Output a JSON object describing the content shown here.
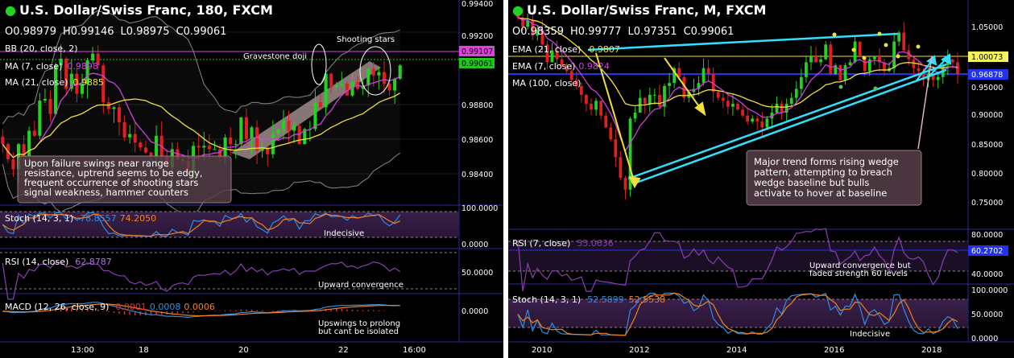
{
  "chart_data": [
    {
      "type": "candlestick",
      "title": "U.S. Dollar/Swiss Franc, 180, FXCM",
      "ohlc": {
        "o": "O0.98979",
        "h": "H0.99146",
        "l": "L0.98975",
        "c": "C0.99061"
      },
      "indicators": [
        {
          "label": "BB (20, close, 2)",
          "value": ""
        },
        {
          "label": "MA (7, close)",
          "value": "0.9898",
          "color": "#d040e0"
        },
        {
          "label": "MA (21, close)",
          "value": "0.9885",
          "color": "#f0e040"
        }
      ],
      "ylim": [
        0.9824,
        0.9944
      ],
      "y_ticks": [
        "0.99400",
        "0.99200",
        "0.98800",
        "0.98600",
        "0.98400"
      ],
      "x_ticks": [
        "13:00",
        "18",
        "20",
        "22",
        "16:00"
      ],
      "price_labels": [
        {
          "text": "0.99107",
          "bg": "#e040e0"
        },
        {
          "text": "0.99061",
          "bg": "#22c322"
        }
      ],
      "annotations": [
        "Gravestone doji",
        "Shooting stars"
      ],
      "note": [
        "Upon failure swings near range",
        "resistance, uptrend seems to be edgy,",
        "frequent occurrence of shooting stars",
        "signal weakness, hammer counters"
      ],
      "close_series": [
        0.9858,
        0.9849,
        0.9843,
        0.9858,
        0.9851,
        0.9866,
        0.9863,
        0.9884,
        0.9885,
        0.9876,
        0.9905,
        0.9909,
        0.9891,
        0.99,
        0.9888,
        0.9894,
        0.9908,
        0.9912,
        0.9905,
        0.9883,
        0.9879,
        0.988,
        0.9871,
        0.9862,
        0.9864,
        0.9859,
        0.9856,
        0.9853,
        0.9851,
        0.9863,
        0.9851,
        0.9844,
        0.9855,
        0.9849,
        0.9848,
        0.9841,
        0.9857,
        0.9856,
        0.9857,
        0.9855,
        0.9855,
        0.985,
        0.9862,
        0.9858,
        0.9858,
        0.9874,
        0.9861,
        0.9868,
        0.9854,
        0.9856,
        0.9852,
        0.9864,
        0.9867,
        0.9872,
        0.9866,
        0.9869,
        0.9858,
        0.9867,
        0.9867,
        0.9883,
        0.988,
        0.99,
        0.9892,
        0.9893,
        0.9894,
        0.9887,
        0.9895,
        0.9891,
        0.9893,
        0.9903,
        0.9899,
        0.9901,
        0.9894,
        0.989,
        0.9897,
        0.9905
      ],
      "panels": [
        {
          "label": "Stoch (14, 3, 1)",
          "v1": "78.8557",
          "v2": "74.2050",
          "ticks": [
            "100.0000",
            "0.0000"
          ],
          "annotation": "Indecisive"
        },
        {
          "label": "RSI (14, close)",
          "v1": "62.8787",
          "ticks": [
            "50.0000"
          ],
          "annotation": "Upward convergence"
        },
        {
          "label": "MACD (12, 26, close, 9)",
          "v1": "0.0001",
          "v2": "0.0008",
          "v3": "0.0006",
          "ticks": [
            "0.0000"
          ],
          "annotation": [
            "Upswings to prolong",
            "but cant be isolated"
          ]
        }
      ]
    },
    {
      "type": "candlestick",
      "title": "U.S. Dollar/Swiss Franc, M, FXCM",
      "ohlc": {
        "o": "O0.98359",
        "h": "H0.99777",
        "l": "L0.97351",
        "c": "C0.99061"
      },
      "indicators": [
        {
          "label": "EMA (21, close)",
          "value": "0.9807",
          "color": "#f0e040"
        },
        {
          "label": "EMA (7, close)",
          "value": "0.9824",
          "color": "#d040e0"
        },
        {
          "label": "MA (100, close)",
          "value": ""
        }
      ],
      "ylim": [
        0.715,
        1.095
      ],
      "y_ticks": [
        "1.05000",
        "0.95000",
        "0.90000",
        "0.85000",
        "0.80000",
        "0.75000"
      ],
      "x_ticks": [
        "2010",
        "2012",
        "2014",
        "2016",
        "2018"
      ],
      "price_labels": [
        {
          "text": "1.00073",
          "bg": "#f5f560"
        },
        {
          "text": "0.96878",
          "bg": "#2233ee"
        }
      ],
      "note": [
        "Major trend forms rising wedge",
        "pattern, attempting to breach",
        "wedge baseline but bulls",
        "activate to hover at baseline"
      ],
      "close_series": [
        1.065,
        1.05,
        1.06,
        1.035,
        1.045,
        1.02,
        0.99,
        1.01,
        0.995,
        0.985,
        0.975,
        0.96,
        0.95,
        0.935,
        0.92,
        0.91,
        0.925,
        0.9,
        0.88,
        0.86,
        0.83,
        0.795,
        0.775,
        0.895,
        0.905,
        0.93,
        0.92,
        0.935,
        0.935,
        0.915,
        0.95,
        0.955,
        0.98,
        0.965,
        0.93,
        0.94,
        0.945,
        0.955,
        0.98,
        0.97,
        0.94,
        0.93,
        0.925,
        0.915,
        0.92,
        0.91,
        0.9,
        0.89,
        0.895,
        0.89,
        0.88,
        0.895,
        0.905,
        0.92,
        0.905,
        0.92,
        0.93,
        0.945,
        0.965,
        0.99,
        1.0,
        0.99,
        0.995,
        1.02,
        0.97,
        0.985,
        0.96,
        0.985,
        0.99,
        1.025,
        1.0,
        0.975,
        0.995,
        1.0,
        0.99,
        0.975,
        0.98,
        1.025,
        1.04,
        1.01,
        0.995,
        0.98,
        0.975,
        0.96,
        0.97,
        0.96,
        0.965,
        0.985,
        0.995,
        0.99,
        0.97
      ],
      "panels": [
        {
          "label": "RSI (7, close)",
          "v1": "55.0636",
          "ticks": [
            "80.0000",
            "60.2702",
            "40.0000"
          ],
          "annotation": [
            "Upward convergence but",
            "faded strength 60 levels"
          ]
        },
        {
          "label": "Stoch (14, 3, 1)",
          "v1": "52.5899",
          "v2": "52.5538",
          "ticks": [
            "100.0000",
            "50.0000",
            "0.0000"
          ],
          "annotation": "Indecisive"
        }
      ]
    }
  ]
}
